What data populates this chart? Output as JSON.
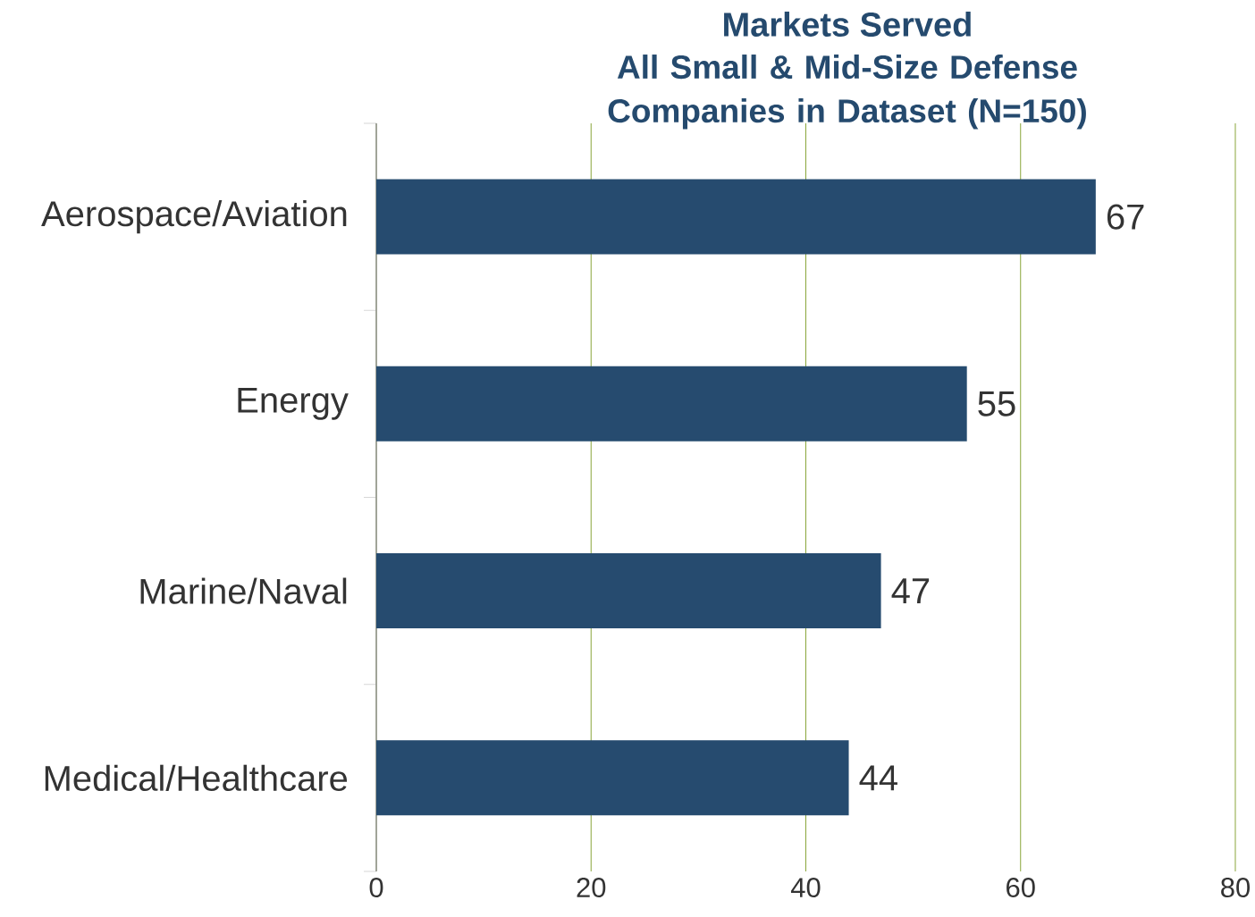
{
  "chart_data": {
    "type": "bar",
    "orientation": "horizontal",
    "title": "Markets Served",
    "subtitle": "All Small & Mid-Size Defense Companies in Dataset (N=150)",
    "categories": [
      "Aerospace/Aviation",
      "Energy",
      "Marine/Naval",
      "Medical/Healthcare"
    ],
    "values": [
      67,
      55,
      47,
      44
    ],
    "color": "#264b6f",
    "data_labels": true,
    "xlim": [
      0,
      80
    ],
    "xticks": [
      0,
      20,
      40,
      60,
      80
    ],
    "grid": "x"
  }
}
